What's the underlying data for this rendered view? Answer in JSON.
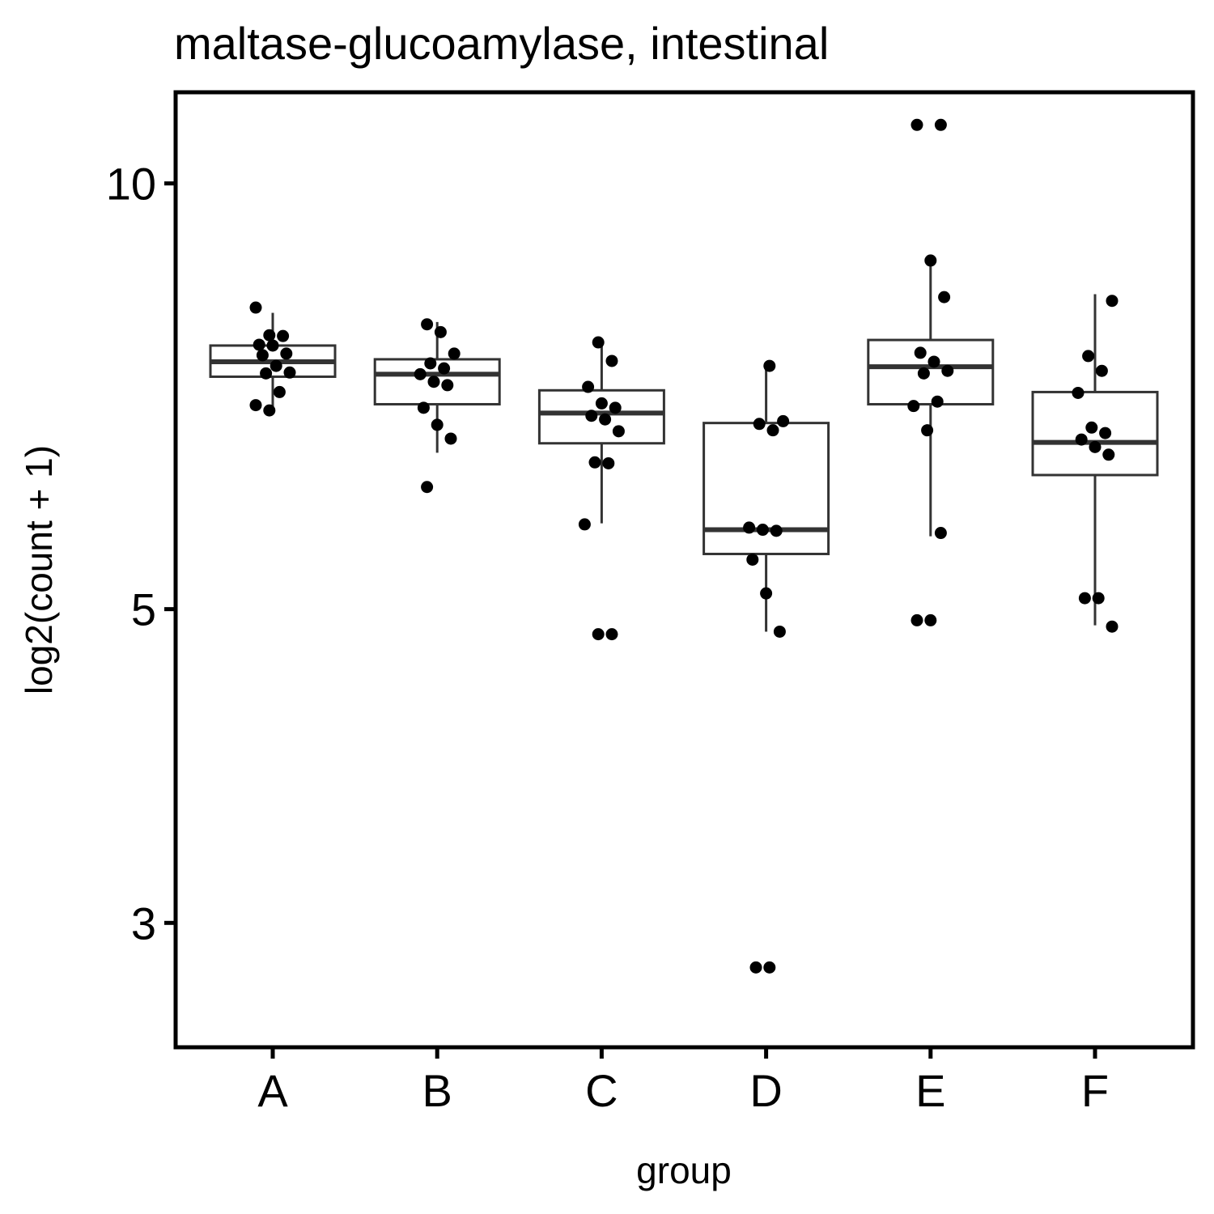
{
  "chart_data": {
    "type": "boxplot",
    "title": "maltase-glucoamylase, intestinal",
    "xlabel": "group",
    "ylabel": "log2(count + 1)",
    "y_scale": "log",
    "ylim": [
      2.45,
      11.6
    ],
    "y_ticks": [
      {
        "value": 3,
        "label": "3"
      },
      {
        "value": 5,
        "label": "5"
      },
      {
        "value": 10,
        "label": "10"
      }
    ],
    "categories": [
      "A",
      "B",
      "C",
      "D",
      "E",
      "F"
    ],
    "grid": false,
    "legend": "none",
    "colors": {
      "box_stroke": "#333333",
      "point": "#000000",
      "axis": "#000000"
    },
    "boxes": [
      {
        "category": "A",
        "whisker_low": 6.95,
        "q1": 7.3,
        "median": 7.48,
        "q3": 7.68,
        "whisker_high": 8.1
      },
      {
        "category": "B",
        "whisker_low": 6.45,
        "q1": 6.98,
        "median": 7.33,
        "q3": 7.51,
        "whisker_high": 7.98
      },
      {
        "category": "C",
        "whisker_low": 5.75,
        "q1": 6.55,
        "median": 6.88,
        "q3": 7.14,
        "whisker_high": 7.7
      },
      {
        "category": "D",
        "whisker_low": 4.82,
        "q1": 5.47,
        "median": 5.69,
        "q3": 6.77,
        "whisker_high": 7.45
      },
      {
        "category": "E",
        "whisker_low": 5.63,
        "q1": 6.98,
        "median": 7.42,
        "q3": 7.75,
        "whisker_high": 8.76
      },
      {
        "category": "F",
        "whisker_low": 4.87,
        "q1": 6.22,
        "median": 6.56,
        "q3": 7.12,
        "whisker_high": 8.35
      }
    ],
    "points": [
      {
        "category": "A",
        "values": [
          8.17,
          7.81,
          7.8,
          7.69,
          7.68,
          7.58,
          7.56,
          7.43,
          7.35,
          7.34,
          7.12,
          6.97,
          6.91
        ]
      },
      {
        "category": "B",
        "values": [
          7.95,
          7.85,
          7.58,
          7.46,
          7.4,
          7.33,
          7.24,
          7.2,
          6.94,
          6.75,
          6.6,
          6.1
        ]
      },
      {
        "category": "C",
        "values": [
          7.72,
          7.49,
          7.18,
          6.99,
          6.94,
          6.85,
          6.81,
          6.68,
          6.35,
          6.34,
          5.74,
          4.8,
          4.8
        ]
      },
      {
        "category": "D",
        "values": [
          7.43,
          6.79,
          6.76,
          6.69,
          5.71,
          5.69,
          5.68,
          5.42,
          5.13,
          4.82,
          2.79,
          2.79
        ]
      },
      {
        "category": "E",
        "values": [
          11.0,
          11.0,
          8.82,
          8.31,
          7.59,
          7.48,
          7.37,
          7.34,
          7.01,
          6.96,
          6.69,
          5.66,
          4.91,
          4.91
        ]
      },
      {
        "category": "F",
        "values": [
          8.26,
          7.55,
          7.37,
          7.11,
          6.72,
          6.66,
          6.59,
          6.51,
          6.43,
          5.09,
          5.09,
          4.86
        ]
      }
    ]
  }
}
